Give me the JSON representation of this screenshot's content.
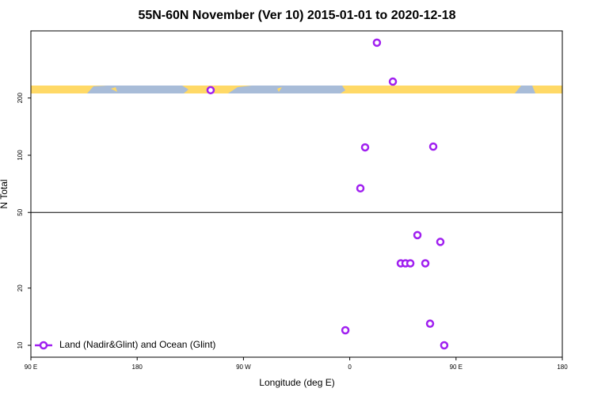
{
  "chart_data": {
    "type": "scatter",
    "title": "55N-60N November (Ver 10)   2015-01-01 to 2020-12-18",
    "xlabel": "Longitude (deg E)",
    "ylabel": "N Total",
    "xlim": [
      90,
      540
    ],
    "xticks": [
      {
        "value": 90,
        "label": "90 E"
      },
      180,
      {
        "value": 270,
        "label": "90 W"
      },
      {
        "value": 360,
        "label": "0"
      },
      {
        "value": 450,
        "label": "90 E"
      },
      {
        "value": 540,
        "label": "180"
      }
    ],
    "ylim": [
      8.66,
      451
    ],
    "yscale": "log",
    "yticks": [
      10,
      20,
      50,
      100,
      200
    ],
    "reference_line": 50,
    "legend": "lower left",
    "series": [
      {
        "name": "Land (Nadir&Glint) and Ocean (Glint)",
        "color": "#a020f0",
        "x": [
          383,
          396.5,
          242.2,
          373,
          430.7,
          369,
          417.3,
          436.7,
          403.2,
          407.2,
          411.3,
          424,
          356.3,
          428,
          440
        ],
        "values": [
          391,
          244,
          220,
          110,
          111,
          67,
          38,
          35,
          27,
          27,
          27,
          27,
          12,
          13,
          10
        ]
      }
    ]
  }
}
